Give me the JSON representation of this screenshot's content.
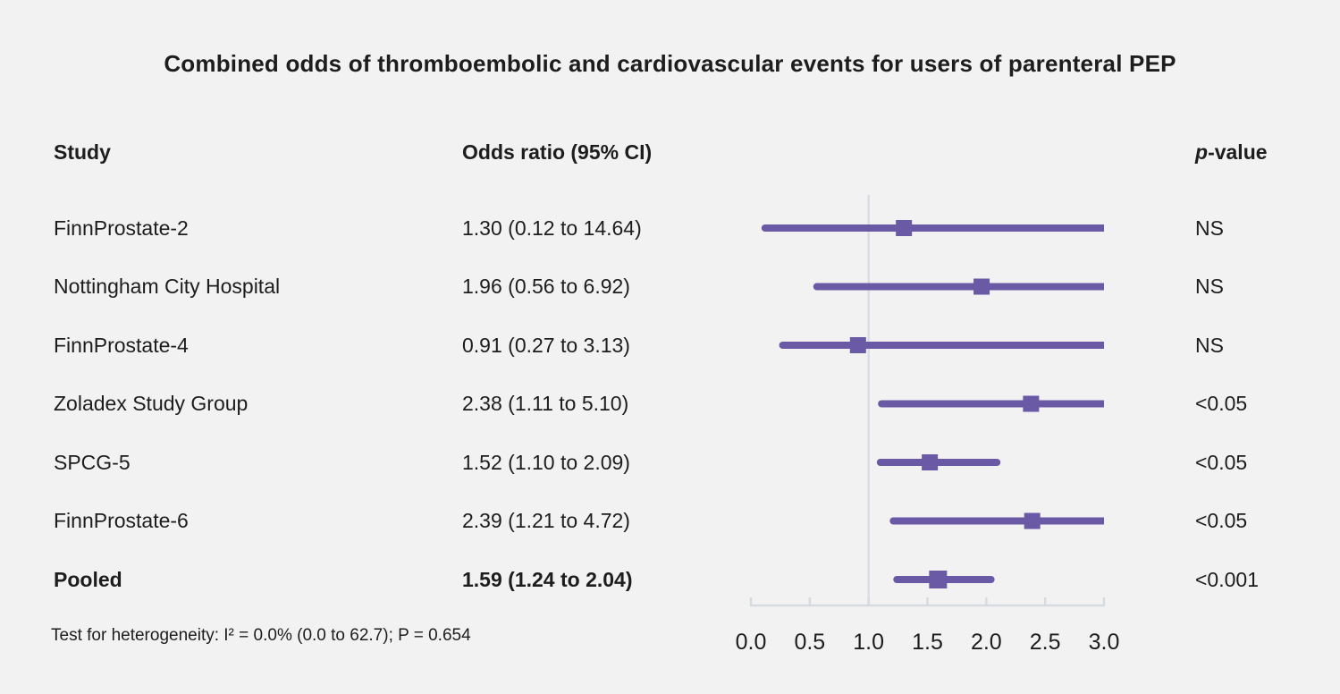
{
  "title": "Combined odds of thromboembolic and cardiovascular events for users of parenteral PEP",
  "columns": {
    "study": "Study",
    "odds_ratio": "Odds ratio (95% CI)",
    "p_italic": "p",
    "p_rest": "-value"
  },
  "footnote": "Test for heterogeneity: I² = 0.0% (0.0 to 62.7); P = 0.654",
  "chart_data": {
    "type": "forest",
    "title": "Combined odds of thromboembolic and cardiovascular events for users of parenteral PEP",
    "xlabel": "Odds ratio",
    "axis": {
      "min": 0.0,
      "max": 3.0,
      "step": 0.5,
      "ref_line": 1.0,
      "tick_labels": [
        "0.0",
        "0.5",
        "1.0",
        "1.5",
        "2.0",
        "2.5",
        "3.0"
      ]
    },
    "rows": [
      {
        "study": "FinnProstate-2",
        "or_text": "1.30 (0.12 to 14.64)",
        "p": "NS",
        "estimate": 1.3,
        "lower": 0.12,
        "upper": 14.64,
        "bold": false
      },
      {
        "study": "Nottingham City Hospital",
        "or_text": "1.96 (0.56 to 6.92)",
        "p": "NS",
        "estimate": 1.96,
        "lower": 0.56,
        "upper": 6.92,
        "bold": false
      },
      {
        "study": "FinnProstate-4",
        "or_text": "0.91 (0.27 to 3.13)",
        "p": "NS",
        "estimate": 0.91,
        "lower": 0.27,
        "upper": 3.13,
        "bold": false
      },
      {
        "study": "Zoladex Study Group",
        "or_text": "2.38 (1.11 to 5.10)",
        "p": "<0.05",
        "estimate": 2.38,
        "lower": 1.11,
        "upper": 5.1,
        "bold": false
      },
      {
        "study": "SPCG-5",
        "or_text": "1.52 (1.10 to 2.09)",
        "p": "<0.05",
        "estimate": 1.52,
        "lower": 1.1,
        "upper": 2.09,
        "bold": false
      },
      {
        "study": "FinnProstate-6",
        "or_text": "2.39 (1.21 to 4.72)",
        "p": "<0.05",
        "estimate": 2.39,
        "lower": 1.21,
        "upper": 4.72,
        "bold": false
      },
      {
        "study": "Pooled",
        "or_text": "1.59 (1.24 to 2.04)",
        "p": "<0.001",
        "estimate": 1.59,
        "lower": 1.24,
        "upper": 2.04,
        "bold": true
      }
    ],
    "colors": {
      "marker": "#6a5aa5",
      "ref_line": "#d9dde3",
      "axis": "#d6dbe1",
      "background": "#f2f2f2",
      "text": "#1d1d1d"
    },
    "layout": {
      "legend": "none",
      "grid": "off",
      "ci_lines_clipped_at_max": true
    }
  }
}
